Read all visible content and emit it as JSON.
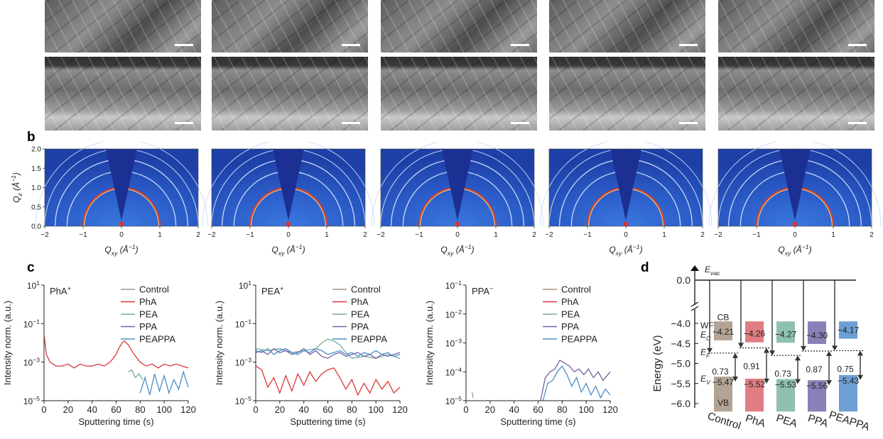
{
  "panel_labels": {
    "b": "b",
    "c": "c",
    "d": "d"
  },
  "sem_count": 5,
  "giwaxs": {
    "ylabel": "Q",
    "ylabel_sub": "z",
    "ylabel_unit": "(Å",
    "ylabel_exp": "−1",
    "ylabel_close": ")",
    "xlabel": "Q",
    "xlabel_sub": "xy",
    "xlabel_unit": "(Å",
    "xlabel_exp": "−1",
    "xlabel_close": ")",
    "yticks": [
      "2.0",
      "1.5",
      "1.0",
      "0.5",
      "0.0"
    ],
    "xticks": [
      "−2",
      "−1",
      "0",
      "1",
      "2"
    ]
  },
  "chart_data": [
    {
      "type": "line",
      "log_y": true,
      "title": "PhA",
      "title_sup": "+",
      "xlabel": "Sputtering time (s)",
      "ylabel": "Intensity norm. (a.u.)",
      "xlim": [
        0,
        120
      ],
      "ylim_exp": [
        -5,
        1
      ],
      "xticks": [
        "0",
        "20",
        "40",
        "60",
        "80",
        "100",
        "120"
      ],
      "yticks": [
        {
          "b": "10",
          "e": "1"
        },
        {
          "b": "10",
          "e": "−1"
        },
        {
          "b": "10",
          "e": "−3"
        },
        {
          "b": "10",
          "e": "−5"
        }
      ],
      "legend": [
        "Control",
        "PhA",
        "PEA",
        "PPA",
        "PEAPPA"
      ],
      "colors": [
        "#a89484",
        "#d9373a",
        "#76aa9a",
        "#7262a6",
        "#4e8ec6"
      ],
      "series": [
        {
          "name": "Control",
          "x": [],
          "y": []
        },
        {
          "name": "PhA",
          "x": [
            0,
            2,
            5,
            10,
            15,
            20,
            25,
            30,
            35,
            40,
            45,
            50,
            55,
            60,
            62,
            65,
            67,
            70,
            75,
            80,
            85,
            90,
            95,
            100,
            105,
            110,
            115,
            120
          ],
          "y": [
            -1.6,
            -2.6,
            -3.0,
            -3.2,
            -3.2,
            -3.1,
            -3.3,
            -3.1,
            -3.2,
            -3.2,
            -3.1,
            -3.2,
            -3.0,
            -2.6,
            -2.3,
            -2.0,
            -1.9,
            -2.1,
            -2.6,
            -3.0,
            -3.2,
            -3.1,
            -3.3,
            -3.1,
            -3.2,
            -3.1,
            -3.2,
            -3.3
          ]
        },
        {
          "name": "PEA",
          "x": [
            70,
            73,
            76,
            79,
            82
          ],
          "y": [
            -3.5,
            -3.4,
            -3.8,
            -3.6,
            -3.9
          ]
        },
        {
          "name": "PPA",
          "x": [],
          "y": []
        },
        {
          "name": "PEAPPA",
          "x": [
            80,
            84,
            88,
            92,
            96,
            100,
            104,
            108,
            112,
            116,
            120
          ],
          "y": [
            -4.6,
            -3.8,
            -4.7,
            -3.6,
            -4.5,
            -3.7,
            -4.6,
            -3.9,
            -4.4,
            -3.5,
            -4.3
          ]
        }
      ]
    },
    {
      "type": "line",
      "log_y": true,
      "title": "PEA",
      "title_sup": "+",
      "xlabel": "Sputtering time (s)",
      "ylabel": "Intensity norm. (a.u.)",
      "xlim": [
        0,
        120
      ],
      "ylim_exp": [
        -5,
        1
      ],
      "xticks": [
        "0",
        "20",
        "40",
        "60",
        "80",
        "100",
        "120"
      ],
      "yticks": [
        {
          "b": "10",
          "e": "1"
        },
        {
          "b": "10",
          "e": "−1"
        },
        {
          "b": "10",
          "e": "−3"
        },
        {
          "b": "10",
          "e": "−5"
        }
      ],
      "legend": [
        "Control",
        "PhA",
        "PEA",
        "PPA",
        "PEAPPA"
      ],
      "colors": [
        "#a89484",
        "#d9373a",
        "#76aa9a",
        "#7262a6",
        "#4e8ec6"
      ],
      "series": [
        {
          "name": "Control",
          "x": [],
          "y": []
        },
        {
          "name": "PhA",
          "x": [
            0,
            5,
            10,
            15,
            20,
            25,
            30,
            35,
            40,
            45,
            50,
            55,
            60,
            65,
            70,
            75,
            80,
            85,
            90,
            95,
            100,
            105,
            110,
            115,
            120
          ],
          "y": [
            -3.2,
            -3.4,
            -4.3,
            -3.8,
            -4.6,
            -3.7,
            -4.5,
            -3.6,
            -4.2,
            -3.5,
            -4.0,
            -3.6,
            -3.4,
            -3.3,
            -3.8,
            -4.4,
            -3.9,
            -4.7,
            -4.1,
            -4.6,
            -3.9,
            -4.4,
            -4.0,
            -4.6,
            -4.3
          ]
        },
        {
          "name": "PEA",
          "x": [
            0,
            10,
            20,
            30,
            40,
            50,
            55,
            60,
            65,
            70,
            75,
            80,
            90,
            100,
            110,
            120
          ],
          "y": [
            -2.3,
            -2.4,
            -2.3,
            -2.5,
            -2.4,
            -2.3,
            -2.0,
            -1.8,
            -1.9,
            -2.1,
            -2.5,
            -2.8,
            -2.7,
            -2.8,
            -2.6,
            -2.8
          ]
        },
        {
          "name": "PPA",
          "x": [
            0,
            5,
            10,
            15,
            20,
            25,
            30,
            35,
            40,
            45,
            50,
            55,
            60,
            65,
            70,
            75,
            80,
            85,
            90,
            95,
            100,
            105,
            110,
            115,
            120
          ],
          "y": [
            -2.5,
            -2.4,
            -2.6,
            -2.3,
            -2.5,
            -2.4,
            -2.6,
            -2.5,
            -2.3,
            -2.6,
            -2.4,
            -2.7,
            -2.8,
            -2.6,
            -2.5,
            -2.7,
            -2.6,
            -2.5,
            -2.7,
            -2.6,
            -2.8,
            -2.6,
            -2.7,
            -2.6,
            -2.5
          ]
        },
        {
          "name": "PEAPPA",
          "x": [
            0,
            5,
            10,
            15,
            20,
            25,
            30,
            35,
            40,
            45,
            50,
            55,
            60,
            65,
            70,
            75,
            80,
            85,
            90,
            95,
            100,
            105,
            110,
            115,
            120
          ],
          "y": [
            -2.4,
            -2.5,
            -2.3,
            -2.6,
            -2.4,
            -2.3,
            -2.5,
            -2.6,
            -2.4,
            -2.5,
            -2.3,
            -2.4,
            -2.6,
            -2.5,
            -2.4,
            -2.6,
            -2.5,
            -2.7,
            -2.5,
            -2.6,
            -2.4,
            -2.6,
            -2.5,
            -2.7,
            -2.6
          ]
        }
      ]
    },
    {
      "type": "line",
      "log_y": true,
      "title": "PPA",
      "title_sup": "−",
      "xlabel": "Sputtering time (s)",
      "ylabel": "Intensity norm. (a.u.)",
      "xlim": [
        0,
        120
      ],
      "ylim_exp": [
        -5,
        -1
      ],
      "xticks": [
        "0",
        "20",
        "40",
        "60",
        "80",
        "100",
        "120"
      ],
      "yticks": [
        {
          "b": "10",
          "e": "−1"
        },
        {
          "b": "10",
          "e": "−2"
        },
        {
          "b": "10",
          "e": "−3"
        },
        {
          "b": "10",
          "e": "−4"
        },
        {
          "b": "10",
          "e": "−5"
        }
      ],
      "legend": [
        "Control",
        "PhA",
        "PEA",
        "PPA",
        "PEAPPA"
      ],
      "colors": [
        "#a89484",
        "#d9373a",
        "#76aa9a",
        "#7262a6",
        "#4e8ec6"
      ],
      "series": [
        {
          "name": "Control",
          "x": [
            5,
            6
          ],
          "y": [
            -4.7,
            -4.9
          ]
        },
        {
          "name": "PhA",
          "x": [],
          "y": []
        },
        {
          "name": "PEA",
          "x": [],
          "y": []
        },
        {
          "name": "PPA",
          "x": [
            62,
            66,
            70,
            74,
            78,
            82,
            86,
            90,
            94,
            98,
            102,
            106,
            110,
            114,
            118,
            120
          ],
          "y": [
            -5.0,
            -4.2,
            -4.0,
            -3.9,
            -3.6,
            -3.7,
            -3.8,
            -4.0,
            -3.9,
            -4.1,
            -3.9,
            -4.2,
            -4.0,
            -4.3,
            -4.1,
            -4.0
          ]
        },
        {
          "name": "PEAPPA",
          "x": [
            64,
            68,
            72,
            76,
            80,
            84,
            88,
            92,
            96,
            100,
            104,
            108,
            112,
            116,
            120
          ],
          "y": [
            -5.0,
            -4.4,
            -4.3,
            -4.0,
            -3.8,
            -4.1,
            -4.5,
            -4.2,
            -4.7,
            -4.4,
            -4.8,
            -4.5,
            -4.9,
            -4.6,
            -4.8
          ]
        }
      ]
    },
    {
      "type": "bar",
      "title": "",
      "ylabel": "Energy (eV)",
      "yticks": [
        "0.0",
        "−4.0",
        "−4.5",
        "−5.0",
        "−5.5",
        "−6.0"
      ],
      "categories": [
        "Control",
        "PhA",
        "PEA",
        "PPA",
        "PEAPPA"
      ],
      "colors": [
        "#b3a394",
        "#e07d82",
        "#8fc1b3",
        "#8a80b8",
        "#6e9fd4"
      ],
      "evac": "E",
      "evac_sub": "vac",
      "ef": "E",
      "ef_sub": "F",
      "ec": "E",
      "ec_sub": "C",
      "ev": "E",
      "ev_sub": "V",
      "wf": "WF",
      "cb": "CB",
      "vb": "VB",
      "cb_values": [
        -4.21,
        -4.26,
        -4.27,
        -4.3,
        -4.17
      ],
      "vb_values": [
        -5.47,
        -5.52,
        -5.53,
        -5.56,
        -5.43
      ],
      "cb_labels": [
        "−4.21",
        "−4.26",
        "−4.27",
        "−4.30",
        "−4.17"
      ],
      "vb_labels": [
        "−5.47",
        "−5.52",
        "−5.53",
        "−5.56",
        "−5.43"
      ],
      "ef_minus_ev": [
        0.73,
        0.91,
        0.73,
        0.87,
        0.75
      ],
      "ef_minus_ev_labels": [
        "0.73",
        "0.91",
        "0.73",
        "0.87",
        "0.75"
      ]
    }
  ]
}
